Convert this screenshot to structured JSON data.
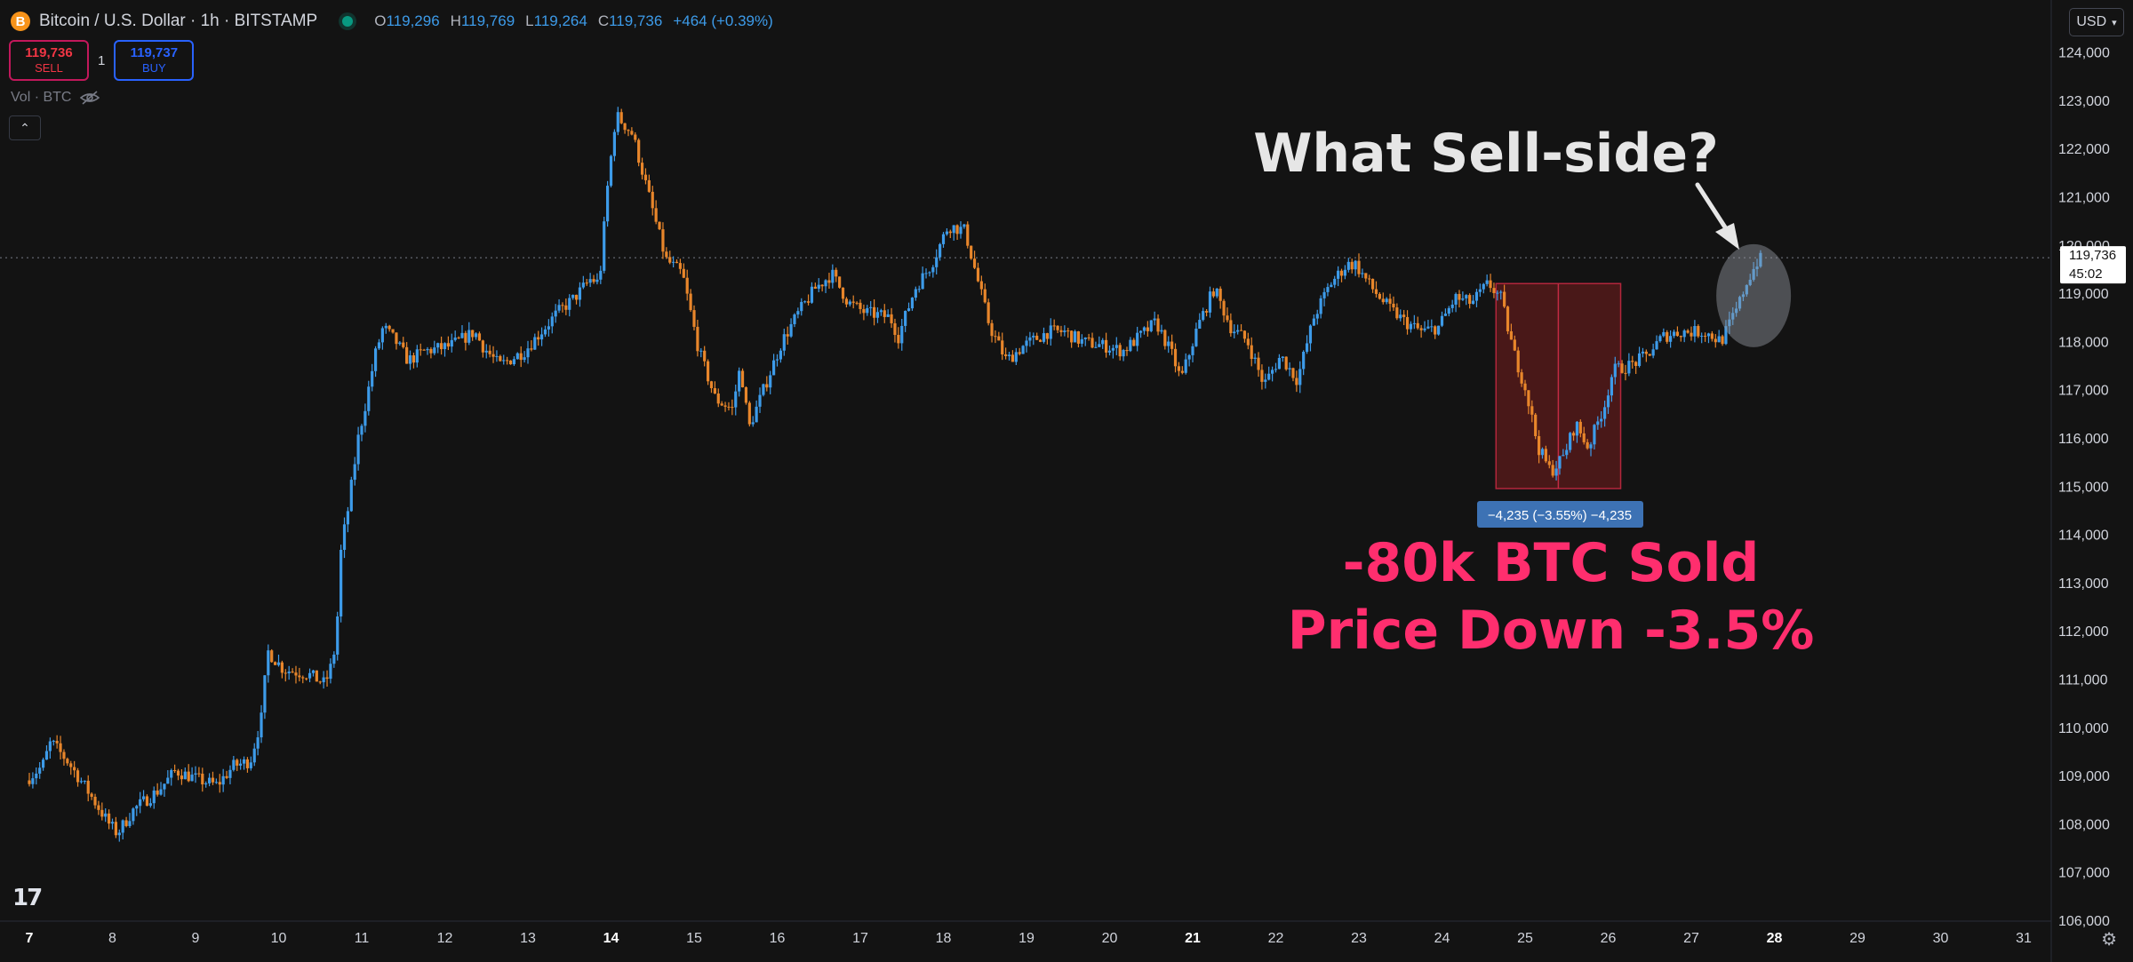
{
  "header": {
    "coin_letter": "B",
    "symbol": "Bitcoin / U.S. Dollar · 1h · BITSTAMP",
    "ohlc": [
      {
        "k": "O",
        "v": "119,296"
      },
      {
        "k": "H",
        "v": "119,769"
      },
      {
        "k": "L",
        "v": "119,264"
      },
      {
        "k": "C",
        "v": "119,736"
      },
      {
        "k": "",
        "v": "+464 (+0.39%)"
      }
    ]
  },
  "trade": {
    "sell_price": "119,736",
    "sell_label": "SELL",
    "quantity": "1",
    "buy_price": "119,737",
    "buy_label": "BUY"
  },
  "volume_label": "Vol · BTC",
  "currency": "USD",
  "colors": {
    "up": "#3d9be9",
    "down": "#e8862b",
    "background": "#131313",
    "annotation_pink": "#ff2e6e",
    "measure_fill": "#5c1b1b"
  },
  "chart_data": {
    "type": "candlestick",
    "y_ticks": [
      "124,000",
      "123,000",
      "122,000",
      "121,000",
      "120,000",
      "119,000",
      "118,000",
      "117,000",
      "116,000",
      "115,000",
      "114,000",
      "113,000",
      "112,000",
      "111,000",
      "110,000",
      "109,000",
      "108,000",
      "107,000",
      "106,000"
    ],
    "ylim": [
      105700,
      124300
    ],
    "x_ticks": [
      "7",
      "8",
      "9",
      "10",
      "11",
      "12",
      "13",
      "14",
      "15",
      "16",
      "17",
      "18",
      "19",
      "20",
      "21",
      "22",
      "23",
      "24",
      "25",
      "26",
      "27",
      "28",
      "29",
      "30",
      "31"
    ],
    "x_bold": [
      "7",
      "14",
      "21",
      "28"
    ],
    "last_price": {
      "value": 119736,
      "label": "119,736",
      "countdown": "45:02"
    },
    "path": [
      [
        7.0,
        108900
      ],
      [
        7.2,
        109200
      ],
      [
        7.3,
        109700
      ],
      [
        7.5,
        109300
      ],
      [
        7.7,
        108800
      ],
      [
        8.0,
        108000
      ],
      [
        8.1,
        107800
      ],
      [
        8.3,
        108300
      ],
      [
        8.6,
        108700
      ],
      [
        8.8,
        109100
      ],
      [
        9.1,
        108900
      ],
      [
        9.3,
        108800
      ],
      [
        9.5,
        109200
      ],
      [
        9.7,
        109300
      ],
      [
        9.85,
        110300
      ],
      [
        9.9,
        111600
      ],
      [
        10.1,
        111200
      ],
      [
        10.4,
        111100
      ],
      [
        10.6,
        110900
      ],
      [
        10.7,
        111400
      ],
      [
        10.75,
        112300
      ],
      [
        10.8,
        113900
      ],
      [
        10.85,
        114200
      ],
      [
        11.0,
        116000
      ],
      [
        11.1,
        116800
      ],
      [
        11.2,
        117700
      ],
      [
        11.3,
        118300
      ],
      [
        11.45,
        118000
      ],
      [
        11.6,
        117600
      ],
      [
        11.8,
        117800
      ],
      [
        12.1,
        117900
      ],
      [
        12.4,
        118200
      ],
      [
        12.5,
        117900
      ],
      [
        12.7,
        117500
      ],
      [
        13.0,
        117800
      ],
      [
        13.2,
        118200
      ],
      [
        13.4,
        118600
      ],
      [
        13.6,
        118900
      ],
      [
        13.8,
        119300
      ],
      [
        13.9,
        119200
      ],
      [
        14.0,
        121200
      ],
      [
        14.1,
        122700
      ],
      [
        14.3,
        122300
      ],
      [
        14.5,
        121000
      ],
      [
        14.7,
        119700
      ],
      [
        14.9,
        119400
      ],
      [
        15.1,
        117800
      ],
      [
        15.3,
        116800
      ],
      [
        15.5,
        116600
      ],
      [
        15.6,
        117500
      ],
      [
        15.7,
        116200
      ],
      [
        15.9,
        117100
      ],
      [
        16.1,
        118000
      ],
      [
        16.3,
        118600
      ],
      [
        16.5,
        119100
      ],
      [
        16.7,
        119400
      ],
      [
        16.9,
        118800
      ],
      [
        17.1,
        118600
      ],
      [
        17.4,
        118500
      ],
      [
        17.5,
        118100
      ],
      [
        17.7,
        119100
      ],
      [
        17.9,
        119600
      ],
      [
        18.1,
        120400
      ],
      [
        18.3,
        120300
      ],
      [
        18.45,
        119300
      ],
      [
        18.6,
        118300
      ],
      [
        18.8,
        117600
      ],
      [
        19.0,
        117900
      ],
      [
        19.3,
        118200
      ],
      [
        19.5,
        118200
      ],
      [
        19.7,
        118000
      ],
      [
        20.0,
        117900
      ],
      [
        20.2,
        117800
      ],
      [
        20.4,
        118100
      ],
      [
        20.6,
        118400
      ],
      [
        20.8,
        117700
      ],
      [
        20.9,
        117200
      ],
      [
        21.1,
        118300
      ],
      [
        21.3,
        119100
      ],
      [
        21.5,
        118300
      ],
      [
        21.7,
        118000
      ],
      [
        21.9,
        117100
      ],
      [
        22.1,
        117700
      ],
      [
        22.3,
        117200
      ],
      [
        22.5,
        118500
      ],
      [
        22.7,
        119200
      ],
      [
        22.9,
        119600
      ],
      [
        23.0,
        119600
      ],
      [
        23.2,
        119100
      ],
      [
        23.4,
        118700
      ],
      [
        23.6,
        118400
      ],
      [
        23.8,
        118200
      ],
      [
        24.0,
        118300
      ],
      [
        24.2,
        118900
      ],
      [
        24.4,
        118800
      ],
      [
        24.6,
        119200
      ],
      [
        24.75,
        118900
      ],
      [
        24.9,
        117800
      ],
      [
        25.05,
        117000
      ],
      [
        25.2,
        115800
      ],
      [
        25.35,
        115300
      ],
      [
        25.5,
        115600
      ],
      [
        25.65,
        116300
      ],
      [
        25.8,
        115800
      ],
      [
        26.0,
        116700
      ],
      [
        26.1,
        117400
      ],
      [
        26.3,
        117500
      ],
      [
        26.5,
        117700
      ],
      [
        26.7,
        118100
      ],
      [
        26.9,
        118200
      ],
      [
        27.2,
        118200
      ],
      [
        27.4,
        118000
      ],
      [
        27.6,
        118700
      ],
      [
        27.7,
        119200
      ],
      [
        27.85,
        119700
      ]
    ]
  },
  "annotations": {
    "question": "What Sell-side?",
    "line1": "-80k BTC Sold",
    "line2": "Price Down -3.5%",
    "measure_label": "−4,235 (−3.55%) −4,235",
    "measure": {
      "x_start": 24.65,
      "x_end": 26.15,
      "y_top": 119200,
      "y_bottom": 114950,
      "x_mid": 25.4
    }
  }
}
